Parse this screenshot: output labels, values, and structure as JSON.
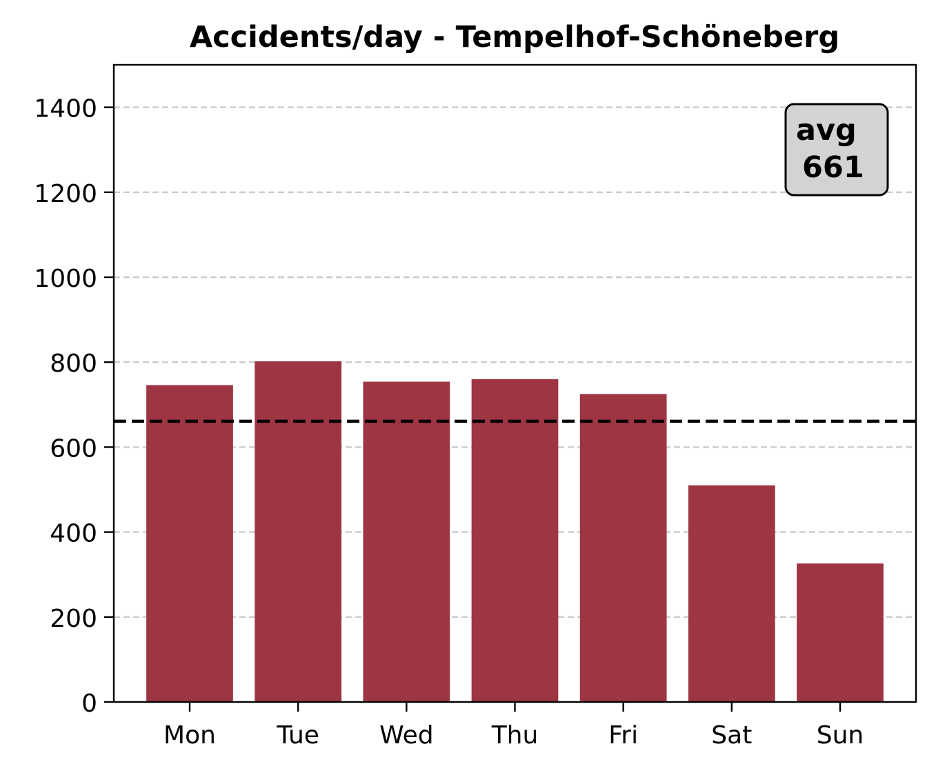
{
  "chart_data": {
    "type": "bar",
    "title": "Accidents/day - Tempelhof-Schöneberg",
    "xlabel": "",
    "ylabel": "",
    "categories": [
      "Mon",
      "Tue",
      "Wed",
      "Thu",
      "Fri",
      "Sat",
      "Sun"
    ],
    "values": [
      746,
      802,
      754,
      760,
      725,
      510,
      326
    ],
    "ylim": [
      0,
      1500
    ],
    "yticks": [
      "0",
      "200",
      "400",
      "600",
      "800",
      "1000",
      "1200",
      "1400"
    ],
    "grid": "y-dashed",
    "bar_color": "#9e3543",
    "average": {
      "value": 661,
      "line_color": "#000000",
      "label_line1": "avg",
      "label_line2": "661",
      "label_placement": "top-right",
      "label_bg": "#d3d3d3"
    }
  }
}
